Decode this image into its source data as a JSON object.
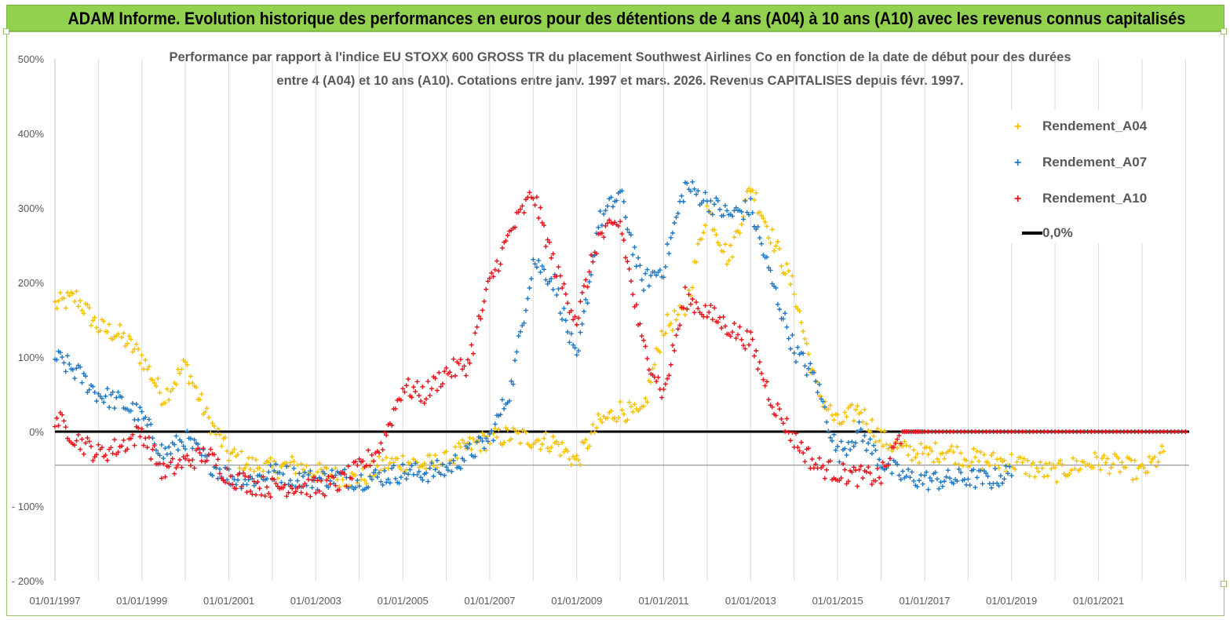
{
  "banner": {
    "title": "ADAM Informe. Evolution historique des performances en euros pour des détentions de 4 ans (A04) à 10 ans (A10) avec les revenus connus capitalisés"
  },
  "colors": {
    "banner_bg": "#92d050",
    "A04": "#f5c000",
    "A07": "#1f77c2",
    "A10": "#e8101a",
    "zero_line": "#000000"
  },
  "chart_data": {
    "type": "scatter",
    "title_line1": "Performance par rapport à l'indice EU STOXX 600 GROSS TR  du placement Southwest Airlines Co en fonction de la date de début pour des durées",
    "title_line2": "entre 4 (A04) et 10 ans (A10). Cotations entre janv. 1997 et mars. 2026. Revenus CAPITALISES depuis févr. 1997.",
    "xlim": [
      "1997-01-01",
      "2023-02-01"
    ],
    "ylim": [
      -200,
      500
    ],
    "yticks": [
      500,
      400,
      300,
      200,
      100,
      0,
      -100,
      -200
    ],
    "ytick_labels": [
      "500%",
      "400%",
      "300%",
      "200%",
      "100%",
      "0%",
      "- 100%",
      "- 200%"
    ],
    "xtick_labels": [
      "01/01/1997",
      "01/01/1999",
      "01/01/2001",
      "01/01/2003",
      "01/01/2005",
      "01/01/2007",
      "01/01/2009",
      "01/01/2011",
      "01/01/2013",
      "01/01/2015",
      "01/01/2017",
      "01/01/2019",
      "01/01/2021"
    ],
    "grid": "vertical",
    "legend_position": "top-right",
    "legend": [
      "Rendement_A04",
      "Rendement_A07",
      "Rendement_A10",
      "0,0%"
    ],
    "series": [
      {
        "name": "Rendement_A04",
        "x": [
          "1997-01-01",
          "1997-07-01",
          "1998-01-01",
          "1998-07-01",
          "1999-01-01",
          "1999-07-01",
          "2000-01-01",
          "2000-07-01",
          "2001-01-01",
          "2001-07-01",
          "2002-01-01",
          "2002-07-01",
          "2003-01-01",
          "2003-07-01",
          "2004-01-01",
          "2004-07-01",
          "2005-01-01",
          "2005-07-01",
          "2006-01-01",
          "2006-07-01",
          "2007-01-01",
          "2007-07-01",
          "2008-01-01",
          "2008-07-01",
          "2009-01-01",
          "2009-07-01",
          "2010-01-01",
          "2010-07-01",
          "2011-01-01",
          "2011-07-01",
          "2012-01-01",
          "2012-07-01",
          "2013-01-01",
          "2013-07-01",
          "2014-01-01",
          "2014-07-01",
          "2015-01-01",
          "2015-07-01",
          "2016-01-01",
          "2016-07-01",
          "2017-01-01",
          "2017-07-01",
          "2018-01-01",
          "2018-07-01",
          "2019-01-01",
          "2019-07-01",
          "2020-01-01",
          "2020-07-01",
          "2021-01-01",
          "2021-07-01",
          "2022-01-01",
          "2022-07-01"
        ],
        "y": [
          170,
          180,
          140,
          130,
          100,
          45,
          90,
          20,
          -30,
          -45,
          -50,
          -45,
          -55,
          -60,
          -65,
          -45,
          -40,
          -45,
          -40,
          -20,
          -10,
          -5,
          -10,
          -15,
          -40,
          10,
          30,
          20,
          140,
          160,
          300,
          230,
          330,
          260,
          190,
          60,
          10,
          30,
          -10,
          -25,
          -30,
          -25,
          -35,
          -40,
          -40,
          -50,
          -55,
          -45,
          -40,
          -45,
          -55,
          -30
        ]
      },
      {
        "name": "Rendement_A07",
        "x": [
          "1997-01-01",
          "1997-07-01",
          "1998-01-01",
          "1998-07-01",
          "1999-01-01",
          "1999-07-01",
          "2000-01-01",
          "2000-07-01",
          "2001-01-01",
          "2001-07-01",
          "2002-01-01",
          "2002-07-01",
          "2003-01-01",
          "2003-07-01",
          "2004-01-01",
          "2004-07-01",
          "2005-01-01",
          "2005-07-01",
          "2006-01-01",
          "2006-07-01",
          "2007-01-01",
          "2007-07-01",
          "2008-01-01",
          "2008-07-01",
          "2009-01-01",
          "2009-07-01",
          "2010-01-01",
          "2010-07-01",
          "2011-01-01",
          "2011-07-01",
          "2012-01-01",
          "2012-07-01",
          "2013-01-01",
          "2013-07-01",
          "2014-01-01",
          "2014-07-01",
          "2015-01-01",
          "2015-07-01",
          "2016-01-01",
          "2016-07-01",
          "2017-01-01",
          "2017-07-01",
          "2018-01-01",
          "2018-07-01",
          "2019-01-01"
        ],
        "y": [
          100,
          80,
          50,
          40,
          20,
          -30,
          -10,
          -40,
          -60,
          -65,
          -55,
          -60,
          -65,
          -60,
          -65,
          -60,
          -55,
          -55,
          -50,
          -30,
          -10,
          60,
          230,
          200,
          90,
          280,
          320,
          200,
          220,
          330,
          310,
          290,
          300,
          200,
          110,
          70,
          -30,
          0,
          -40,
          -60,
          -65,
          -65,
          -62,
          -65,
          -55
        ]
      },
      {
        "name": "Rendement_A10",
        "x": [
          "1997-01-01",
          "1997-07-01",
          "1998-01-01",
          "1998-07-01",
          "1999-01-01",
          "1999-07-01",
          "2000-01-01",
          "2000-07-01",
          "2001-01-01",
          "2001-07-01",
          "2002-01-01",
          "2002-07-01",
          "2003-01-01",
          "2003-07-01",
          "2004-01-01",
          "2004-07-01",
          "2005-01-01",
          "2005-07-01",
          "2006-01-01",
          "2006-07-01",
          "2007-01-01",
          "2007-07-01",
          "2008-01-01",
          "2008-07-01",
          "2009-01-01",
          "2009-07-01",
          "2010-01-01",
          "2010-07-01",
          "2011-01-01",
          "2011-07-01",
          "2012-01-01",
          "2012-07-01",
          "2013-01-01",
          "2013-07-01",
          "2014-01-01",
          "2014-07-01",
          "2015-01-01",
          "2015-07-01",
          "2016-01-01",
          "2016-07-01",
          "2017-01-01",
          "2018-01-01",
          "2019-01-01",
          "2020-01-01",
          "2021-01-01",
          "2022-01-01",
          "2023-01-01"
        ],
        "y": [
          20,
          -10,
          -30,
          -20,
          0,
          -55,
          -40,
          -30,
          -60,
          -70,
          -75,
          -72,
          -75,
          -70,
          -50,
          -20,
          60,
          50,
          80,
          90,
          200,
          270,
          320,
          220,
          150,
          260,
          280,
          120,
          50,
          180,
          160,
          140,
          120,
          40,
          -10,
          -45,
          -55,
          -60,
          -60,
          0,
          0,
          0,
          0,
          0,
          0,
          0,
          0
        ]
      }
    ],
    "reference_line": {
      "name": "0,0%",
      "y": 0
    }
  }
}
